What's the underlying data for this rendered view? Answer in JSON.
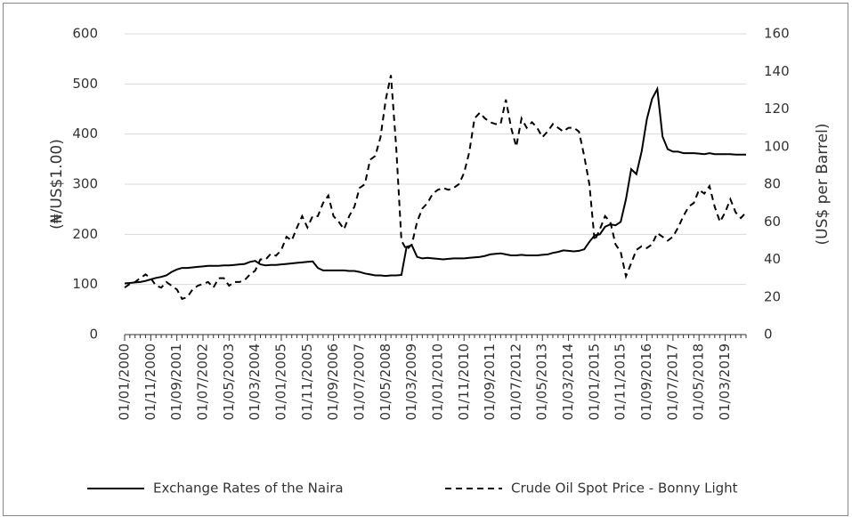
{
  "chart_data": {
    "type": "line",
    "y_label": "(₦/US$1.00)",
    "y2_label": "(US$ per Barrel)",
    "categories": [
      "01/01/2000",
      null,
      null,
      null,
      null,
      "01/11/2000",
      null,
      null,
      null,
      null,
      "01/09/2001",
      null,
      null,
      null,
      null,
      "01/07/2002",
      null,
      null,
      null,
      null,
      "01/05/2003",
      null,
      null,
      null,
      null,
      "01/03/2004",
      null,
      null,
      null,
      null,
      "01/01/2005",
      null,
      null,
      null,
      null,
      "01/11/2005",
      null,
      null,
      null,
      null,
      "01/09/2006",
      null,
      null,
      null,
      null,
      "01/07/2007",
      null,
      null,
      null,
      null,
      "01/05/2008",
      null,
      null,
      null,
      null,
      "01/03/2009",
      null,
      null,
      null,
      null,
      "01/01/2010",
      null,
      null,
      null,
      null,
      "01/11/2010",
      null,
      null,
      null,
      null,
      "01/09/2011",
      null,
      null,
      null,
      null,
      "01/07/2012",
      null,
      null,
      null,
      null,
      "01/05/2013",
      null,
      null,
      null,
      null,
      "01/03/2014",
      null,
      null,
      null,
      null,
      "01/01/2015",
      null,
      null,
      null,
      null,
      "01/11/2015",
      null,
      null,
      null,
      null,
      "01/09/2016",
      null,
      null,
      null,
      null,
      "01/07/2017",
      null,
      null,
      null,
      null,
      "01/05/2018",
      null,
      null,
      null,
      null,
      "01/03/2019",
      null,
      null,
      null,
      null
    ],
    "series": [
      {
        "name": "Exchange Rates of the Naira",
        "color": "#000000",
        "dash": "solid",
        "axis": "y",
        "values": [
          102,
          103,
          104,
          105,
          107,
          110,
          113,
          115,
          118,
          125,
          130,
          133,
          133,
          134,
          135,
          136,
          137,
          137,
          137,
          138,
          138,
          139,
          140,
          141,
          145,
          147,
          140,
          138,
          139,
          139,
          140,
          141,
          142,
          143,
          144,
          145,
          146,
          133,
          128,
          128,
          128,
          128,
          128,
          127,
          127,
          125,
          122,
          120,
          118,
          118,
          117,
          118,
          118,
          119,
          175,
          178,
          155,
          152,
          153,
          152,
          151,
          150,
          151,
          152,
          152,
          152,
          153,
          154,
          155,
          157,
          160,
          161,
          162,
          160,
          158,
          158,
          159,
          158,
          158,
          158,
          159,
          160,
          163,
          165,
          168,
          167,
          166,
          167,
          170,
          185,
          198,
          200,
          215,
          220,
          218,
          225,
          270,
          330,
          320,
          365,
          430,
          470,
          490,
          395,
          370,
          365,
          365,
          362,
          362,
          362,
          361,
          360,
          362,
          360,
          360,
          360,
          360,
          359,
          359,
          359
        ]
      },
      {
        "name": "Crude Oil Spot Price - Bonny Light",
        "color": "#000000",
        "dash": "dashed",
        "axis": "y2",
        "values": [
          25,
          27,
          28,
          30,
          32,
          30,
          26,
          25,
          28,
          26,
          24,
          19,
          20,
          24,
          26,
          27,
          28,
          25,
          30,
          30,
          26,
          28,
          28,
          29,
          32,
          34,
          40,
          40,
          43,
          42,
          45,
          52,
          50,
          57,
          63,
          57,
          63,
          63,
          70,
          74,
          63,
          60,
          56,
          63,
          68,
          78,
          80,
          93,
          95,
          105,
          125,
          138,
          100,
          50,
          45,
          48,
          60,
          67,
          70,
          75,
          77,
          78,
          77,
          78,
          80,
          86,
          97,
          115,
          118,
          115,
          113,
          112,
          112,
          125,
          110,
          100,
          115,
          110,
          113,
          110,
          105,
          108,
          112,
          110,
          108,
          110,
          110,
          108,
          95,
          80,
          50,
          56,
          63,
          60,
          48,
          44,
          31,
          38,
          45,
          47,
          46,
          48,
          54,
          52,
          50,
          52,
          57,
          63,
          68,
          70,
          77,
          75,
          79,
          68,
          60,
          65,
          72,
          65,
          62,
          65
        ]
      }
    ],
    "ylim": [
      0,
      600
    ],
    "yticks": [
      0,
      100,
      200,
      300,
      400,
      500,
      600
    ],
    "y2lim": [
      0,
      160
    ],
    "y2ticks": [
      0,
      20,
      40,
      60,
      80,
      100,
      120,
      140,
      160
    ],
    "grid": true,
    "legend": "bottom"
  }
}
